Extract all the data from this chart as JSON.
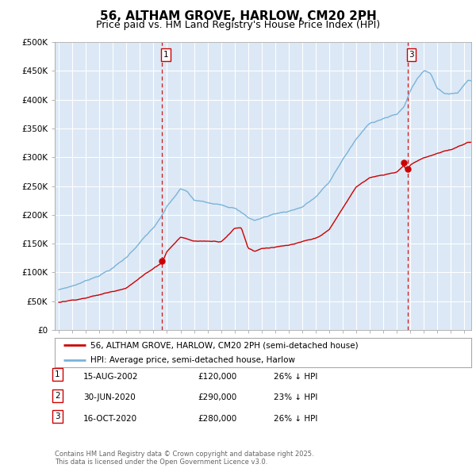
{
  "title": "56, ALTHAM GROVE, HARLOW, CM20 2PH",
  "subtitle": "Price paid vs. HM Land Registry's House Price Index (HPI)",
  "title_fontsize": 11,
  "subtitle_fontsize": 9,
  "bg_color": "#dce8f5",
  "fig_bg_color": "#ffffff",
  "ylabel_ticks": [
    "£0",
    "£50K",
    "£100K",
    "£150K",
    "£200K",
    "£250K",
    "£300K",
    "£350K",
    "£400K",
    "£450K",
    "£500K"
  ],
  "ylim": [
    0,
    500000
  ],
  "xlim_start": 1994.7,
  "xlim_end": 2025.5,
  "grid_color": "#ffffff",
  "hpi_color": "#7ab3d9",
  "price_color": "#cc0000",
  "marker_color": "#cc0000",
  "dashed_line_color": "#cc0000",
  "legend_label_price": "56, ALTHAM GROVE, HARLOW, CM20 2PH (semi-detached house)",
  "legend_label_hpi": "HPI: Average price, semi-detached house, Harlow",
  "transaction_1_date": "15-AUG-2002",
  "transaction_1_price": "£120,000",
  "transaction_1_hpi": "26% ↓ HPI",
  "transaction_1_year": 2002.62,
  "transaction_1_price_val": 120000,
  "transaction_2_date": "30-JUN-2020",
  "transaction_2_price": "£290,000",
  "transaction_2_hpi": "23% ↓ HPI",
  "transaction_2_year": 2020.5,
  "transaction_2_price_val": 290000,
  "transaction_3_date": "16-OCT-2020",
  "transaction_3_price": "£280,000",
  "transaction_3_hpi": "26% ↓ HPI",
  "transaction_3_year": 2020.8,
  "transaction_3_price_val": 280000,
  "footer_text": "Contains HM Land Registry data © Crown copyright and database right 2025.\nThis data is licensed under the Open Government Licence v3.0."
}
